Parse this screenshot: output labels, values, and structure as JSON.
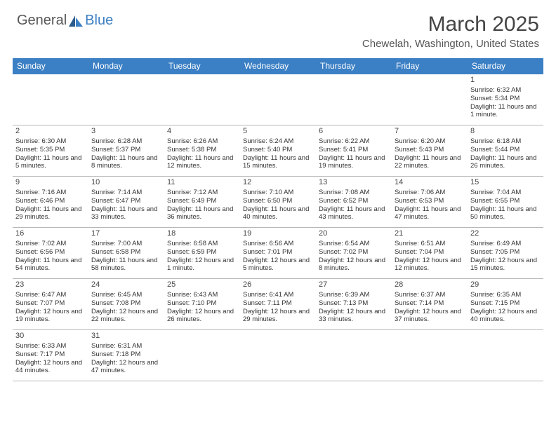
{
  "logo": {
    "text1": "General",
    "text2": "Blue"
  },
  "title": "March 2025",
  "location": "Chewelah, Washington, United States",
  "colors": {
    "header_bg": "#3b7fc4",
    "header_text": "#ffffff",
    "border_top": "#3b7fc4",
    "border_bottom": "#b8b8b8",
    "text": "#333333",
    "title_color": "#444444"
  },
  "day_headers": [
    "Sunday",
    "Monday",
    "Tuesday",
    "Wednesday",
    "Thursday",
    "Friday",
    "Saturday"
  ],
  "weeks": [
    [
      null,
      null,
      null,
      null,
      null,
      null,
      {
        "n": "1",
        "sr": "Sunrise: 6:32 AM",
        "ss": "Sunset: 5:34 PM",
        "dl": "Daylight: 11 hours and 1 minute."
      }
    ],
    [
      {
        "n": "2",
        "sr": "Sunrise: 6:30 AM",
        "ss": "Sunset: 5:35 PM",
        "dl": "Daylight: 11 hours and 5 minutes."
      },
      {
        "n": "3",
        "sr": "Sunrise: 6:28 AM",
        "ss": "Sunset: 5:37 PM",
        "dl": "Daylight: 11 hours and 8 minutes."
      },
      {
        "n": "4",
        "sr": "Sunrise: 6:26 AM",
        "ss": "Sunset: 5:38 PM",
        "dl": "Daylight: 11 hours and 12 minutes."
      },
      {
        "n": "5",
        "sr": "Sunrise: 6:24 AM",
        "ss": "Sunset: 5:40 PM",
        "dl": "Daylight: 11 hours and 15 minutes."
      },
      {
        "n": "6",
        "sr": "Sunrise: 6:22 AM",
        "ss": "Sunset: 5:41 PM",
        "dl": "Daylight: 11 hours and 19 minutes."
      },
      {
        "n": "7",
        "sr": "Sunrise: 6:20 AM",
        "ss": "Sunset: 5:43 PM",
        "dl": "Daylight: 11 hours and 22 minutes."
      },
      {
        "n": "8",
        "sr": "Sunrise: 6:18 AM",
        "ss": "Sunset: 5:44 PM",
        "dl": "Daylight: 11 hours and 26 minutes."
      }
    ],
    [
      {
        "n": "9",
        "sr": "Sunrise: 7:16 AM",
        "ss": "Sunset: 6:46 PM",
        "dl": "Daylight: 11 hours and 29 minutes."
      },
      {
        "n": "10",
        "sr": "Sunrise: 7:14 AM",
        "ss": "Sunset: 6:47 PM",
        "dl": "Daylight: 11 hours and 33 minutes."
      },
      {
        "n": "11",
        "sr": "Sunrise: 7:12 AM",
        "ss": "Sunset: 6:49 PM",
        "dl": "Daylight: 11 hours and 36 minutes."
      },
      {
        "n": "12",
        "sr": "Sunrise: 7:10 AM",
        "ss": "Sunset: 6:50 PM",
        "dl": "Daylight: 11 hours and 40 minutes."
      },
      {
        "n": "13",
        "sr": "Sunrise: 7:08 AM",
        "ss": "Sunset: 6:52 PM",
        "dl": "Daylight: 11 hours and 43 minutes."
      },
      {
        "n": "14",
        "sr": "Sunrise: 7:06 AM",
        "ss": "Sunset: 6:53 PM",
        "dl": "Daylight: 11 hours and 47 minutes."
      },
      {
        "n": "15",
        "sr": "Sunrise: 7:04 AM",
        "ss": "Sunset: 6:55 PM",
        "dl": "Daylight: 11 hours and 50 minutes."
      }
    ],
    [
      {
        "n": "16",
        "sr": "Sunrise: 7:02 AM",
        "ss": "Sunset: 6:56 PM",
        "dl": "Daylight: 11 hours and 54 minutes."
      },
      {
        "n": "17",
        "sr": "Sunrise: 7:00 AM",
        "ss": "Sunset: 6:58 PM",
        "dl": "Daylight: 11 hours and 58 minutes."
      },
      {
        "n": "18",
        "sr": "Sunrise: 6:58 AM",
        "ss": "Sunset: 6:59 PM",
        "dl": "Daylight: 12 hours and 1 minute."
      },
      {
        "n": "19",
        "sr": "Sunrise: 6:56 AM",
        "ss": "Sunset: 7:01 PM",
        "dl": "Daylight: 12 hours and 5 minutes."
      },
      {
        "n": "20",
        "sr": "Sunrise: 6:54 AM",
        "ss": "Sunset: 7:02 PM",
        "dl": "Daylight: 12 hours and 8 minutes."
      },
      {
        "n": "21",
        "sr": "Sunrise: 6:51 AM",
        "ss": "Sunset: 7:04 PM",
        "dl": "Daylight: 12 hours and 12 minutes."
      },
      {
        "n": "22",
        "sr": "Sunrise: 6:49 AM",
        "ss": "Sunset: 7:05 PM",
        "dl": "Daylight: 12 hours and 15 minutes."
      }
    ],
    [
      {
        "n": "23",
        "sr": "Sunrise: 6:47 AM",
        "ss": "Sunset: 7:07 PM",
        "dl": "Daylight: 12 hours and 19 minutes."
      },
      {
        "n": "24",
        "sr": "Sunrise: 6:45 AM",
        "ss": "Sunset: 7:08 PM",
        "dl": "Daylight: 12 hours and 22 minutes."
      },
      {
        "n": "25",
        "sr": "Sunrise: 6:43 AM",
        "ss": "Sunset: 7:10 PM",
        "dl": "Daylight: 12 hours and 26 minutes."
      },
      {
        "n": "26",
        "sr": "Sunrise: 6:41 AM",
        "ss": "Sunset: 7:11 PM",
        "dl": "Daylight: 12 hours and 29 minutes."
      },
      {
        "n": "27",
        "sr": "Sunrise: 6:39 AM",
        "ss": "Sunset: 7:13 PM",
        "dl": "Daylight: 12 hours and 33 minutes."
      },
      {
        "n": "28",
        "sr": "Sunrise: 6:37 AM",
        "ss": "Sunset: 7:14 PM",
        "dl": "Daylight: 12 hours and 37 minutes."
      },
      {
        "n": "29",
        "sr": "Sunrise: 6:35 AM",
        "ss": "Sunset: 7:15 PM",
        "dl": "Daylight: 12 hours and 40 minutes."
      }
    ],
    [
      {
        "n": "30",
        "sr": "Sunrise: 6:33 AM",
        "ss": "Sunset: 7:17 PM",
        "dl": "Daylight: 12 hours and 44 minutes."
      },
      {
        "n": "31",
        "sr": "Sunrise: 6:31 AM",
        "ss": "Sunset: 7:18 PM",
        "dl": "Daylight: 12 hours and 47 minutes."
      },
      null,
      null,
      null,
      null,
      null
    ]
  ]
}
